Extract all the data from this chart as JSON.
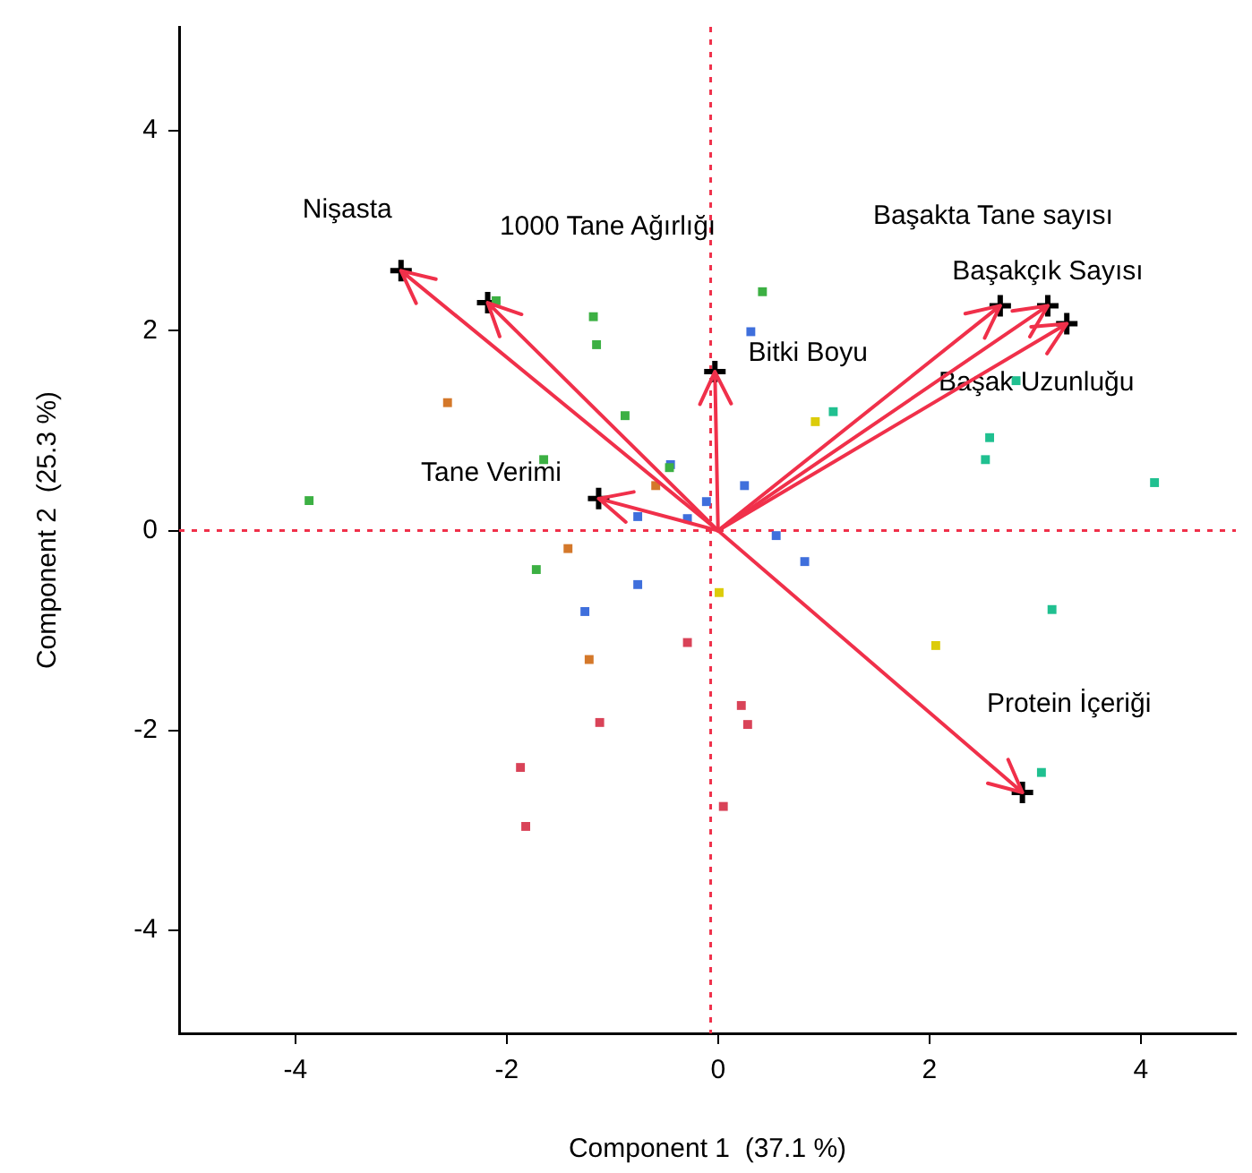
{
  "chart_data": {
    "type": "scatter",
    "xlabel": "Component 1  (37.1 %)",
    "ylabel": "Component 2  (25.3 %)",
    "xlim": [
      -5.1,
      4.9
    ],
    "ylim": [
      -5.03,
      5.04
    ],
    "xticks": [
      -4,
      -2,
      0,
      2,
      4
    ],
    "yticks": [
      -4,
      -2,
      0,
      2,
      4
    ],
    "grid": false,
    "legend": false,
    "marker": "square",
    "series": [
      {
        "type": "scatter",
        "color": "#3cb043",
        "x": [
          -1.18,
          -1.15,
          0.42,
          -0.88,
          -1.65,
          -3.87,
          -1.72,
          -2.1,
          -0.46
        ],
        "values": [
          2.14,
          1.86,
          2.39,
          1.15,
          0.71,
          0.3,
          -0.39,
          2.3,
          0.63
        ]
      },
      {
        "type": "scatter",
        "color": "#3f6fdc",
        "x": [
          0.31,
          -0.45,
          0.25,
          -0.11,
          -0.29,
          -0.76,
          0.55,
          -0.76,
          -1.26,
          0.82
        ],
        "values": [
          1.99,
          0.66,
          0.45,
          0.29,
          0.12,
          0.14,
          -0.05,
          -0.54,
          -0.81,
          -0.31
        ]
      },
      {
        "type": "scatter",
        "color": "#d4782a",
        "x": [
          -2.56,
          -0.59,
          -1.42,
          -1.22
        ],
        "values": [
          1.28,
          0.45,
          -0.18,
          -1.29
        ]
      },
      {
        "type": "scatter",
        "color": "#dccc0a",
        "x": [
          0.01,
          0.92,
          2.06
        ],
        "values": [
          -0.62,
          1.09,
          -1.15
        ]
      },
      {
        "type": "scatter",
        "color": "#20c090",
        "x": [
          1.09,
          2.82,
          2.57,
          2.53,
          4.13,
          3.16,
          3.06
        ],
        "values": [
          1.19,
          1.5,
          0.93,
          0.71,
          0.48,
          -0.79,
          -2.42
        ]
      },
      {
        "type": "scatter",
        "color": "#d94358",
        "x": [
          -0.29,
          0.22,
          0.28,
          -1.12,
          -1.87,
          -1.82,
          0.05
        ],
        "values": [
          -1.12,
          -1.75,
          -1.94,
          -1.92,
          -2.37,
          -2.96,
          -2.76
        ]
      },
      {
        "type": "scatter",
        "color": "#000000",
        "marker": "cross",
        "x": [
          -3.0,
          -2.18,
          -1.13,
          -0.03,
          2.67,
          3.12,
          3.3,
          2.88
        ],
        "values": [
          2.6,
          2.28,
          0.32,
          1.59,
          2.25,
          2.25,
          2.07,
          -2.62
        ]
      }
    ],
    "ref_lines": [
      {
        "axis": "x",
        "value": -0.07,
        "color": "#f0304a",
        "line_style": "dotted"
      },
      {
        "axis": "y",
        "value": 0,
        "color": "#f0304a",
        "line_style": "dotted"
      }
    ],
    "annotations": [
      {
        "text": "Nişasta",
        "x": -3.0,
        "y": 2.6
      },
      {
        "text": "1000 Tane Ağırlığı",
        "x": -2.18,
        "y": 2.28
      },
      {
        "text": "Tane Verimi",
        "x": -1.13,
        "y": 0.32
      },
      {
        "text": "Bitki Boyu",
        "x": -0.03,
        "y": 1.59
      },
      {
        "text": "Başakta Tane sayısı",
        "x": 2.67,
        "y": 2.25
      },
      {
        "text": "Başakçık Sayısı",
        "x": 3.12,
        "y": 2.25
      },
      {
        "text": "Başak Uzunluğu",
        "x": 3.3,
        "y": 2.07
      },
      {
        "text": "Protein İçeriği",
        "x": 2.88,
        "y": -2.62
      }
    ]
  }
}
